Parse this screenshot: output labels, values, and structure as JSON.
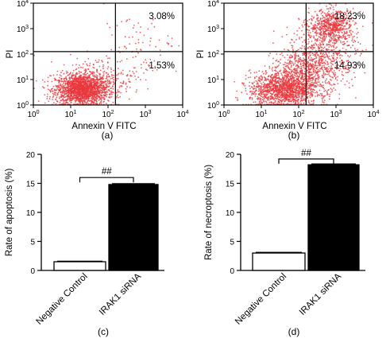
{
  "chart_data": [
    {
      "type": "scatter",
      "panel_label": "(a)",
      "xlabel": "Annexin V FITC",
      "ylabel": "PI",
      "x_scale": "log",
      "y_scale": "log",
      "xlim": [
        1,
        10000
      ],
      "ylim": [
        1,
        10000
      ],
      "x_ticks": [
        1,
        10,
        100,
        1000,
        10000
      ],
      "y_ticks": [
        1,
        10,
        100,
        1000,
        10000
      ],
      "gate": {
        "x": 158,
        "y": 125
      },
      "quadrant_labels": {
        "upper_right": "3.08%",
        "lower_right": "1.53%"
      },
      "clusters": [
        {
          "cx": 20,
          "cy": 4,
          "sx": 0.35,
          "sy": 0.3,
          "n": 1800
        },
        {
          "cx": 50,
          "cy": 10,
          "sx": 0.5,
          "sy": 0.45,
          "n": 260
        },
        {
          "cx": 600,
          "cy": 400,
          "sx": 0.45,
          "sy": 0.45,
          "n": 55
        },
        {
          "cx": 500,
          "cy": 30,
          "sx": 0.4,
          "sy": 0.35,
          "n": 40
        }
      ],
      "point_color": "#e8383d"
    },
    {
      "type": "scatter",
      "panel_label": "(b)",
      "xlabel": "Annexin V FITC",
      "ylabel": "PI",
      "x_scale": "log",
      "y_scale": "log",
      "xlim": [
        1,
        10000
      ],
      "ylim": [
        1,
        10000
      ],
      "x_ticks": [
        1,
        10,
        100,
        1000,
        10000
      ],
      "y_ticks": [
        1,
        10,
        100,
        1000,
        10000
      ],
      "gate": {
        "x": 158,
        "y": 125
      },
      "quadrant_labels": {
        "upper_right": "18.23%",
        "lower_right": "14.93%"
      },
      "clusters": [
        {
          "cx": 40,
          "cy": 4,
          "sx": 0.45,
          "sy": 0.35,
          "n": 1400
        },
        {
          "cx": 200,
          "cy": 25,
          "sx": 0.5,
          "sy": 0.45,
          "n": 700
        },
        {
          "cx": 800,
          "cy": 1300,
          "sx": 0.3,
          "sy": 0.32,
          "n": 600
        },
        {
          "cx": 500,
          "cy": 200,
          "sx": 0.45,
          "sy": 0.5,
          "n": 320
        }
      ],
      "point_color": "#e8383d"
    },
    {
      "type": "bar",
      "panel_label": "(c)",
      "ylabel": "Rate of apoptosis (%)",
      "categories": [
        "Negative Control",
        "IRAK1 siRNA"
      ],
      "values": [
        1.5,
        14.8
      ],
      "errors": [
        0.1,
        0.15
      ],
      "ylim": [
        0,
        20
      ],
      "y_ticks": [
        0,
        5,
        10,
        15,
        20
      ],
      "fills": [
        "#ffffff",
        "#000000"
      ],
      "significance": "##"
    },
    {
      "type": "bar",
      "panel_label": "(d)",
      "ylabel": "Rate of necroptosis (%)",
      "categories": [
        "Negative Control",
        "IRAK1 siRNA"
      ],
      "values": [
        3.0,
        18.2
      ],
      "errors": [
        0.12,
        0.15
      ],
      "ylim": [
        0,
        20
      ],
      "y_ticks": [
        0,
        5,
        10,
        15,
        20
      ],
      "fills": [
        "#ffffff",
        "#000000"
      ],
      "significance": "##"
    }
  ]
}
